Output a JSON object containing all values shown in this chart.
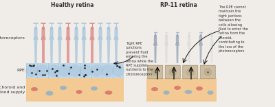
{
  "title_left": "Healthy retina",
  "title_right": "RP-11 retina",
  "label_photoreceptors": "Photoreceptors",
  "label_rpe": "RPE",
  "label_choroid": "Choroid and\nblood supply",
  "annotation_left": "Tight RPE\njunctions\nprevent fluid\nentering the\nretina while the\nRPE supplies\nnutrients to the\nphotoreceptors",
  "annotation_right": "The RPE cannot\nmaintain the\ntight juntions\nbetween the\ncells allowing\nfluid to enter the\nretina from the\nChoroid,\ncontributing to\nthe loss of the\nphotoreceptors",
  "bg_color": "#f0ede8",
  "photoreceptor_blue": "#a8c4de",
  "photoreceptor_red": "#d98888",
  "rpe_layer_color": "#b8d4e8",
  "rpe_dot_color": "#222222",
  "choroid_color": "#f5c890",
  "choroid_oval_red": "#d06060",
  "choroid_oval_blue": "#7aaad0",
  "rpe_diseased_color": "#c8b898",
  "photoreceptor_diseased_blue": "#8898b0",
  "photoreceptor_diseased_grey": "#c0c4cc",
  "arrow_color": "#111111",
  "text_color": "#333333"
}
